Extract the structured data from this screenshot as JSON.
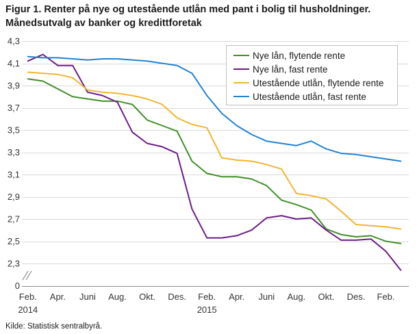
{
  "chart_data": {
    "type": "line",
    "title": "Figur 1. Renter på nye og utestående utlån med pant i bolig til husholdninger. Månedsutvalg av banker og kredittforetak",
    "x": [
      "2014-02",
      "2014-03",
      "2014-04",
      "2014-05",
      "2014-06",
      "2014-07",
      "2014-08",
      "2014-09",
      "2014-10",
      "2014-11",
      "2014-12",
      "2015-01",
      "2015-02",
      "2015-03",
      "2015-04",
      "2015-05",
      "2015-06",
      "2015-07",
      "2015-08",
      "2015-09",
      "2015-10",
      "2015-11",
      "2015-12",
      "2016-01",
      "2016-02",
      "2016-03"
    ],
    "x_ticks": [
      {
        "x": "2014-02",
        "label": "Feb.",
        "year": "2014"
      },
      {
        "x": "2014-04",
        "label": "Apr."
      },
      {
        "x": "2014-06",
        "label": "Juni"
      },
      {
        "x": "2014-08",
        "label": "Aug."
      },
      {
        "x": "2014-10",
        "label": "Okt."
      },
      {
        "x": "2014-12",
        "label": "Des."
      },
      {
        "x": "2015-02",
        "label": "Feb.",
        "year": "2015"
      },
      {
        "x": "2015-04",
        "label": "Apr."
      },
      {
        "x": "2015-06",
        "label": "Juni"
      },
      {
        "x": "2015-08",
        "label": "Aug."
      },
      {
        "x": "2015-10",
        "label": "Okt."
      },
      {
        "x": "2015-12",
        "label": "Des."
      },
      {
        "x": "2016-02",
        "label": "Feb."
      }
    ],
    "y_ticks": [
      4.3,
      4.1,
      3.9,
      3.7,
      3.5,
      3.3,
      3.1,
      2.9,
      2.7,
      2.5,
      2.3,
      0
    ],
    "y_tick_labels": [
      "4,3",
      "4,1",
      "3,9",
      "3,7",
      "3,5",
      "3,3",
      "3,1",
      "2,9",
      "2,7",
      "2,5",
      "2,3",
      "0"
    ],
    "ylim": [
      0,
      4.3
    ],
    "y_axis_break": true,
    "grid": "horizontal",
    "legend_position": "top-right",
    "series": [
      {
        "name": "Nye lån, flytende rente",
        "color": "#3f9024",
        "values": [
          3.96,
          3.94,
          3.87,
          3.8,
          3.78,
          3.76,
          3.76,
          3.73,
          3.59,
          3.54,
          3.49,
          3.22,
          3.11,
          3.08,
          3.08,
          3.06,
          3.0,
          2.87,
          2.83,
          2.78,
          2.61,
          2.56,
          2.54,
          2.55,
          2.5,
          2.48
        ]
      },
      {
        "name": "Nye lån, fast rente",
        "color": "#6a1c86",
        "values": [
          4.12,
          4.18,
          4.08,
          4.08,
          3.84,
          3.81,
          3.75,
          3.48,
          3.38,
          3.35,
          3.29,
          2.79,
          2.53,
          2.53,
          2.55,
          2.6,
          2.71,
          2.73,
          2.7,
          2.71,
          2.6,
          2.51,
          2.51,
          2.52,
          2.41,
          2.24
        ]
      },
      {
        "name": "Utestående utlån, flytende rente",
        "color": "#f2b431",
        "values": [
          4.02,
          4.01,
          4.0,
          3.97,
          3.86,
          3.84,
          3.83,
          3.81,
          3.78,
          3.73,
          3.61,
          3.55,
          3.52,
          3.25,
          3.23,
          3.22,
          3.19,
          3.15,
          2.93,
          2.91,
          2.88,
          2.77,
          2.65,
          2.64,
          2.63,
          2.61
        ]
      },
      {
        "name": "Utestående utlån, fast rente",
        "color": "#1f82d4",
        "values": [
          4.16,
          4.15,
          4.15,
          4.14,
          4.13,
          4.14,
          4.14,
          4.13,
          4.12,
          4.1,
          4.08,
          4.01,
          3.81,
          3.65,
          3.54,
          3.46,
          3.4,
          3.38,
          3.36,
          3.4,
          3.33,
          3.29,
          3.28,
          3.26,
          3.24,
          3.22
        ]
      }
    ]
  },
  "source": "Kilde: Statistisk sentralbyrå."
}
